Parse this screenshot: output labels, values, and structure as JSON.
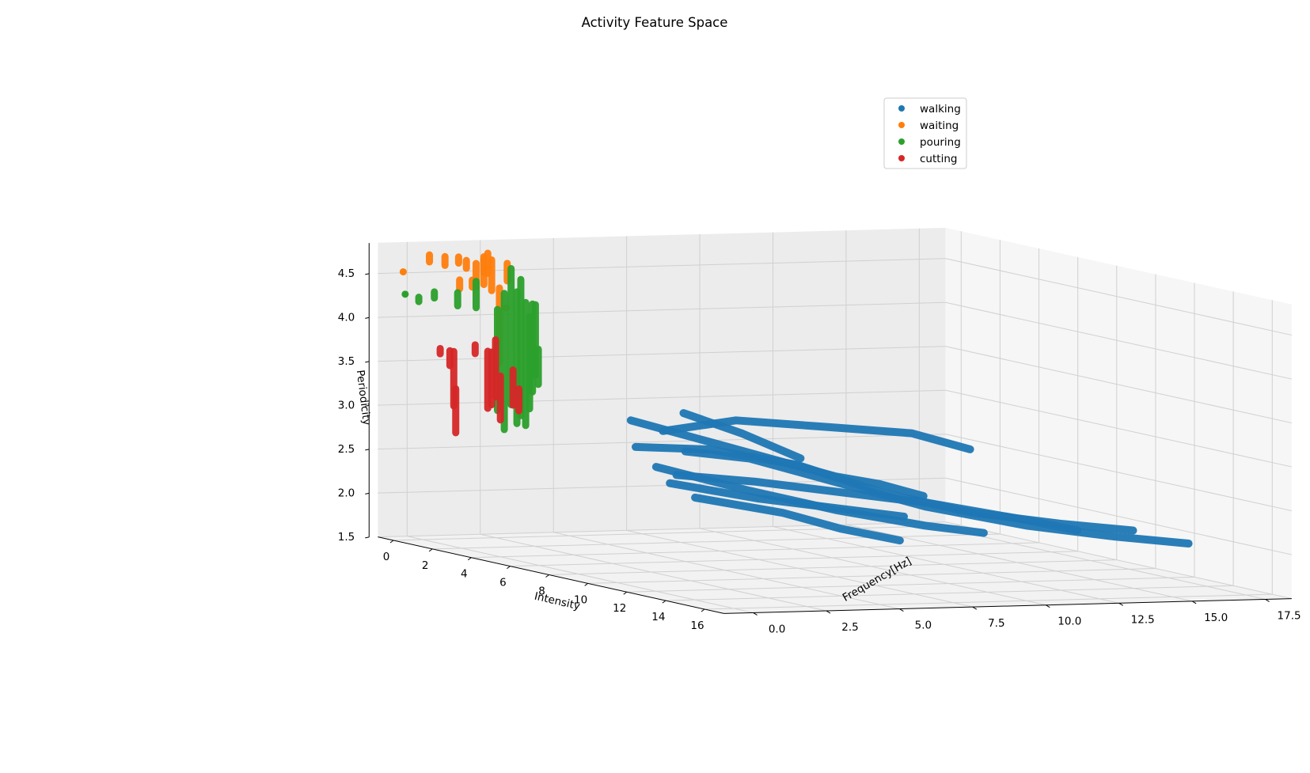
{
  "chart_data": {
    "type": "scatter",
    "projection": "3d",
    "title": "Activity Feature Space",
    "xlabel": "Intensity",
    "ylabel": "Frequency[Hz]",
    "zlabel": "Periodicity",
    "xlim": [
      -0.8,
      17
    ],
    "ylim": [
      -1,
      18.4
    ],
    "zlim": [
      1.5,
      4.85
    ],
    "x_ticks": [
      0,
      2,
      4,
      6,
      8,
      10,
      12,
      14,
      16
    ],
    "y_ticks": [
      "0.0",
      "2.5",
      "5.0",
      "7.5",
      "10.0",
      "12.5",
      "15.0",
      "17.5"
    ],
    "z_ticks": [
      "1.5",
      "2.0",
      "2.5",
      "3.0",
      "3.5",
      "4.0",
      "4.5"
    ],
    "grid": true,
    "legend_position": "upper-right",
    "series": [
      {
        "name": "walking",
        "color": "#1f77b4",
        "paths": [
          [
            [
              12.3,
              0.8,
              3.1
            ],
            [
              12.3,
              3.0,
              3.0
            ],
            [
              12.3,
              6.0,
              2.7
            ],
            [
              12.3,
              9.0,
              2.4
            ],
            [
              12.3,
              12.5,
              2.15
            ],
            [
              12.3,
              15.5,
              2.0
            ],
            [
              12.3,
              18.0,
              1.9
            ]
          ],
          [
            [
              10.2,
              0.5,
              3.05
            ],
            [
              10.2,
              3.0,
              3.0
            ],
            [
              10.2,
              6.0,
              2.8
            ],
            [
              10.2,
              9.0,
              2.45
            ],
            [
              10.2,
              12.0,
              2.2
            ],
            [
              10.2,
              15.0,
              2.05
            ],
            [
              10.2,
              17.5,
              1.95
            ]
          ],
          [
            [
              9.2,
              1.0,
              3.3
            ],
            [
              9.2,
              3.5,
              3.05
            ],
            [
              9.2,
              6.0,
              2.8
            ],
            [
              9.2,
              8.0,
              2.6
            ],
            [
              9.2,
              9.5,
              2.5
            ],
            [
              9.2,
              11.0,
              2.35
            ]
          ],
          [
            [
              11.6,
              0.5,
              3.3
            ],
            [
              11.6,
              3.0,
              3.4
            ],
            [
              11.6,
              6.0,
              3.3
            ],
            [
              11.6,
              9.0,
              3.2
            ],
            [
              11.6,
              11.0,
              3.0
            ]
          ],
          [
            [
              10.8,
              0.8,
              2.85
            ],
            [
              10.8,
              4.0,
              2.55
            ],
            [
              10.8,
              7.0,
              2.3
            ],
            [
              10.8,
              10.0,
              2.1
            ],
            [
              10.8,
              12.0,
              2.0
            ]
          ],
          [
            [
              12.6,
              0.3,
              2.85
            ],
            [
              12.6,
              3.0,
              2.75
            ],
            [
              12.6,
              6.0,
              2.6
            ],
            [
              12.6,
              9.0,
              2.45
            ],
            [
              12.6,
              12.0,
              2.25
            ],
            [
              12.6,
              14.0,
              2.1
            ]
          ],
          [
            [
              9.7,
              2.0,
              2.6
            ],
            [
              9.7,
              5.0,
              2.4
            ],
            [
              9.7,
              8.0,
              2.25
            ],
            [
              9.7,
              10.0,
              2.15
            ]
          ],
          [
            [
              11.0,
              2.0,
              2.5
            ],
            [
              11.0,
              5.0,
              2.3
            ],
            [
              11.0,
              7.0,
              2.1
            ],
            [
              11.0,
              9.0,
              1.95
            ]
          ],
          [
            [
              8.9,
              3.0,
              3.35
            ],
            [
              8.9,
              5.0,
              3.1
            ],
            [
              8.9,
              7.0,
              2.8
            ]
          ]
        ]
      },
      {
        "name": "waiting",
        "color": "#ff7f0e",
        "segments": [
          [
            1.1,
            -0.5,
            4.8,
            4.72
          ],
          [
            1.9,
            -0.5,
            4.82,
            4.72
          ],
          [
            2.6,
            -0.5,
            4.85,
            4.78
          ],
          [
            3.0,
            -0.5,
            4.83,
            4.74
          ],
          [
            3.5,
            -0.5,
            4.82,
            4.55
          ],
          [
            3.9,
            -0.5,
            4.88,
            4.6
          ],
          [
            4.3,
            -0.5,
            4.9,
            4.55
          ],
          [
            4.7,
            -0.5,
            4.6,
            3.75
          ],
          [
            5.1,
            -0.5,
            4.9,
            4.7
          ],
          [
            1.9,
            0,
            4.55,
            4.45
          ],
          [
            2.55,
            0,
            4.58,
            4.5
          ],
          [
            3.6,
            -0.3,
            4.9,
            4.72
          ],
          [
            3.8,
            -0.3,
            4.95,
            4.72
          ]
        ],
        "points": [
          [
            -1.0,
            0,
            4.5
          ],
          [
            4.3,
            0,
            4.35
          ]
        ]
      },
      {
        "name": "pouring",
        "color": "#2ca02c",
        "segments": [
          [
            -0.2,
            0,
            4.25,
            4.2
          ],
          [
            0.6,
            0,
            4.35,
            4.28
          ],
          [
            1.8,
            0,
            4.4,
            4.25
          ],
          [
            4.6,
            -0.5,
            4.35,
            3.2
          ],
          [
            4.95,
            -0.5,
            4.55,
            3.0
          ],
          [
            5.3,
            -0.5,
            4.85,
            3.3
          ],
          [
            5.6,
            -0.5,
            4.6,
            3.1
          ],
          [
            5.8,
            -0.5,
            4.75,
            3.2
          ],
          [
            6.05,
            -0.5,
            4.5,
            3.1
          ],
          [
            6.25,
            -0.5,
            4.35,
            3.3
          ],
          [
            6.4,
            -0.5,
            4.5,
            3.5
          ],
          [
            6.55,
            -0.5,
            4.5,
            3.7
          ],
          [
            6.7,
            -0.5,
            4.0,
            3.6
          ],
          [
            3.2,
            -0.3,
            4.6,
            4.3
          ]
        ],
        "points": [
          [
            -0.9,
            0,
            4.25
          ]
        ]
      },
      {
        "name": "cutting",
        "color": "#d62728",
        "segments": [
          [
            0.9,
            0,
            3.72,
            3.66
          ],
          [
            1.4,
            0,
            3.72,
            3.55
          ],
          [
            1.6,
            0,
            3.72,
            3.1
          ],
          [
            1.7,
            0,
            3.3,
            2.8
          ],
          [
            2.7,
            0,
            3.85,
            3.75
          ],
          [
            4.1,
            -0.5,
            3.85,
            3.2
          ],
          [
            4.3,
            -0.5,
            3.85,
            3.25
          ],
          [
            4.5,
            -0.5,
            4.0,
            3.35
          ],
          [
            4.75,
            -0.5,
            3.6,
            3.1
          ],
          [
            5.4,
            -0.5,
            3.7,
            3.3
          ],
          [
            5.7,
            -0.5,
            3.5,
            3.25
          ]
        ]
      }
    ]
  }
}
